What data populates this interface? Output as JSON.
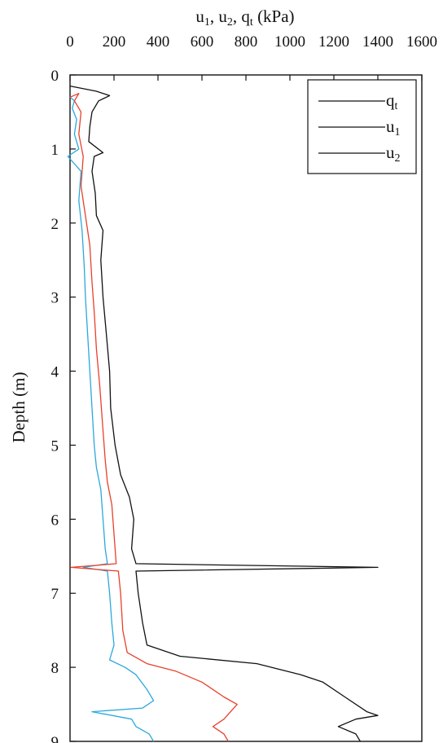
{
  "chart_data": {
    "type": "line",
    "title": "",
    "xlabel": "u1, u2, qt (kPa)",
    "xlabel_parts": {
      "u1": "u",
      "u1_sub": "1",
      "u2": "u",
      "u2_sub": "2",
      "qt": "q",
      "qt_sub": "t",
      "unit": "(kPa)"
    },
    "ylabel": "Depth (m)",
    "xlim": [
      0,
      1600
    ],
    "ylim": [
      0,
      9
    ],
    "y_inverted": true,
    "x_axis_position": "top",
    "x_ticks": [
      "0",
      "200",
      "400",
      "600",
      "800",
      "1000",
      "1200",
      "1400",
      "1600"
    ],
    "y_ticks": [
      "0",
      "1",
      "2",
      "3",
      "4",
      "5",
      "6",
      "7",
      "8",
      "9"
    ],
    "grid": false,
    "legend": {
      "position": "top-right"
    },
    "series": [
      {
        "name": "qt",
        "label_main": "q",
        "label_sub": "t",
        "color": "#111111",
        "points": [
          [
            0,
            0.15
          ],
          [
            120,
            0.22
          ],
          [
            180,
            0.28
          ],
          [
            130,
            0.35
          ],
          [
            100,
            0.5
          ],
          [
            90,
            0.7
          ],
          [
            85,
            0.9
          ],
          [
            150,
            1.05
          ],
          [
            110,
            1.1
          ],
          [
            100,
            1.3
          ],
          [
            115,
            1.6
          ],
          [
            120,
            1.9
          ],
          [
            150,
            2.1
          ],
          [
            140,
            2.5
          ],
          [
            150,
            3.0
          ],
          [
            165,
            3.5
          ],
          [
            180,
            4.0
          ],
          [
            185,
            4.5
          ],
          [
            205,
            5.0
          ],
          [
            230,
            5.4
          ],
          [
            270,
            5.7
          ],
          [
            290,
            6.0
          ],
          [
            280,
            6.4
          ],
          [
            300,
            6.6
          ],
          [
            1400,
            6.65
          ],
          [
            300,
            6.7
          ],
          [
            310,
            7.0
          ],
          [
            330,
            7.4
          ],
          [
            350,
            7.7
          ],
          [
            500,
            7.85
          ],
          [
            850,
            7.95
          ],
          [
            1050,
            8.1
          ],
          [
            1150,
            8.2
          ],
          [
            1250,
            8.4
          ],
          [
            1350,
            8.6
          ],
          [
            1400,
            8.65
          ],
          [
            1300,
            8.7
          ],
          [
            1220,
            8.8
          ],
          [
            1300,
            8.9
          ],
          [
            1320,
            9.0
          ]
        ]
      },
      {
        "name": "u1",
        "label_main": "u",
        "label_sub": "1",
        "color": "#e8402b",
        "points": [
          [
            0,
            0.3
          ],
          [
            40,
            0.25
          ],
          [
            20,
            0.35
          ],
          [
            50,
            0.5
          ],
          [
            40,
            0.8
          ],
          [
            60,
            1.1
          ],
          [
            50,
            1.5
          ],
          [
            70,
            1.9
          ],
          [
            90,
            2.3
          ],
          [
            100,
            2.8
          ],
          [
            110,
            3.2
          ],
          [
            120,
            3.7
          ],
          [
            135,
            4.2
          ],
          [
            150,
            4.8
          ],
          [
            160,
            5.2
          ],
          [
            170,
            5.5
          ],
          [
            190,
            5.8
          ],
          [
            200,
            6.2
          ],
          [
            210,
            6.6
          ],
          [
            5,
            6.65
          ],
          [
            220,
            6.7
          ],
          [
            230,
            7.0
          ],
          [
            240,
            7.5
          ],
          [
            260,
            7.8
          ],
          [
            350,
            7.95
          ],
          [
            480,
            8.05
          ],
          [
            600,
            8.2
          ],
          [
            700,
            8.4
          ],
          [
            760,
            8.5
          ],
          [
            700,
            8.7
          ],
          [
            650,
            8.8
          ],
          [
            700,
            8.9
          ],
          [
            720,
            9.0
          ]
        ]
      },
      {
        "name": "u2",
        "label_main": "u",
        "label_sub": "2",
        "color": "#2ba8dc",
        "points": [
          [
            0,
            0.3
          ],
          [
            20,
            0.35
          ],
          [
            10,
            0.45
          ],
          [
            30,
            0.6
          ],
          [
            20,
            0.8
          ],
          [
            40,
            1.0
          ],
          [
            -10,
            1.1
          ],
          [
            50,
            1.3
          ],
          [
            40,
            1.7
          ],
          [
            55,
            2.1
          ],
          [
            65,
            2.6
          ],
          [
            70,
            3.0
          ],
          [
            80,
            3.5
          ],
          [
            90,
            4.0
          ],
          [
            100,
            4.5
          ],
          [
            110,
            5.0
          ],
          [
            120,
            5.3
          ],
          [
            140,
            5.6
          ],
          [
            150,
            6.0
          ],
          [
            160,
            6.4
          ],
          [
            170,
            6.6
          ],
          [
            60,
            6.65
          ],
          [
            170,
            6.7
          ],
          [
            180,
            7.0
          ],
          [
            190,
            7.4
          ],
          [
            200,
            7.7
          ],
          [
            180,
            7.9
          ],
          [
            250,
            8.0
          ],
          [
            300,
            8.1
          ],
          [
            350,
            8.3
          ],
          [
            380,
            8.45
          ],
          [
            330,
            8.55
          ],
          [
            100,
            8.6
          ],
          [
            280,
            8.7
          ],
          [
            300,
            8.8
          ],
          [
            360,
            8.9
          ],
          [
            380,
            9.0
          ]
        ]
      }
    ]
  }
}
